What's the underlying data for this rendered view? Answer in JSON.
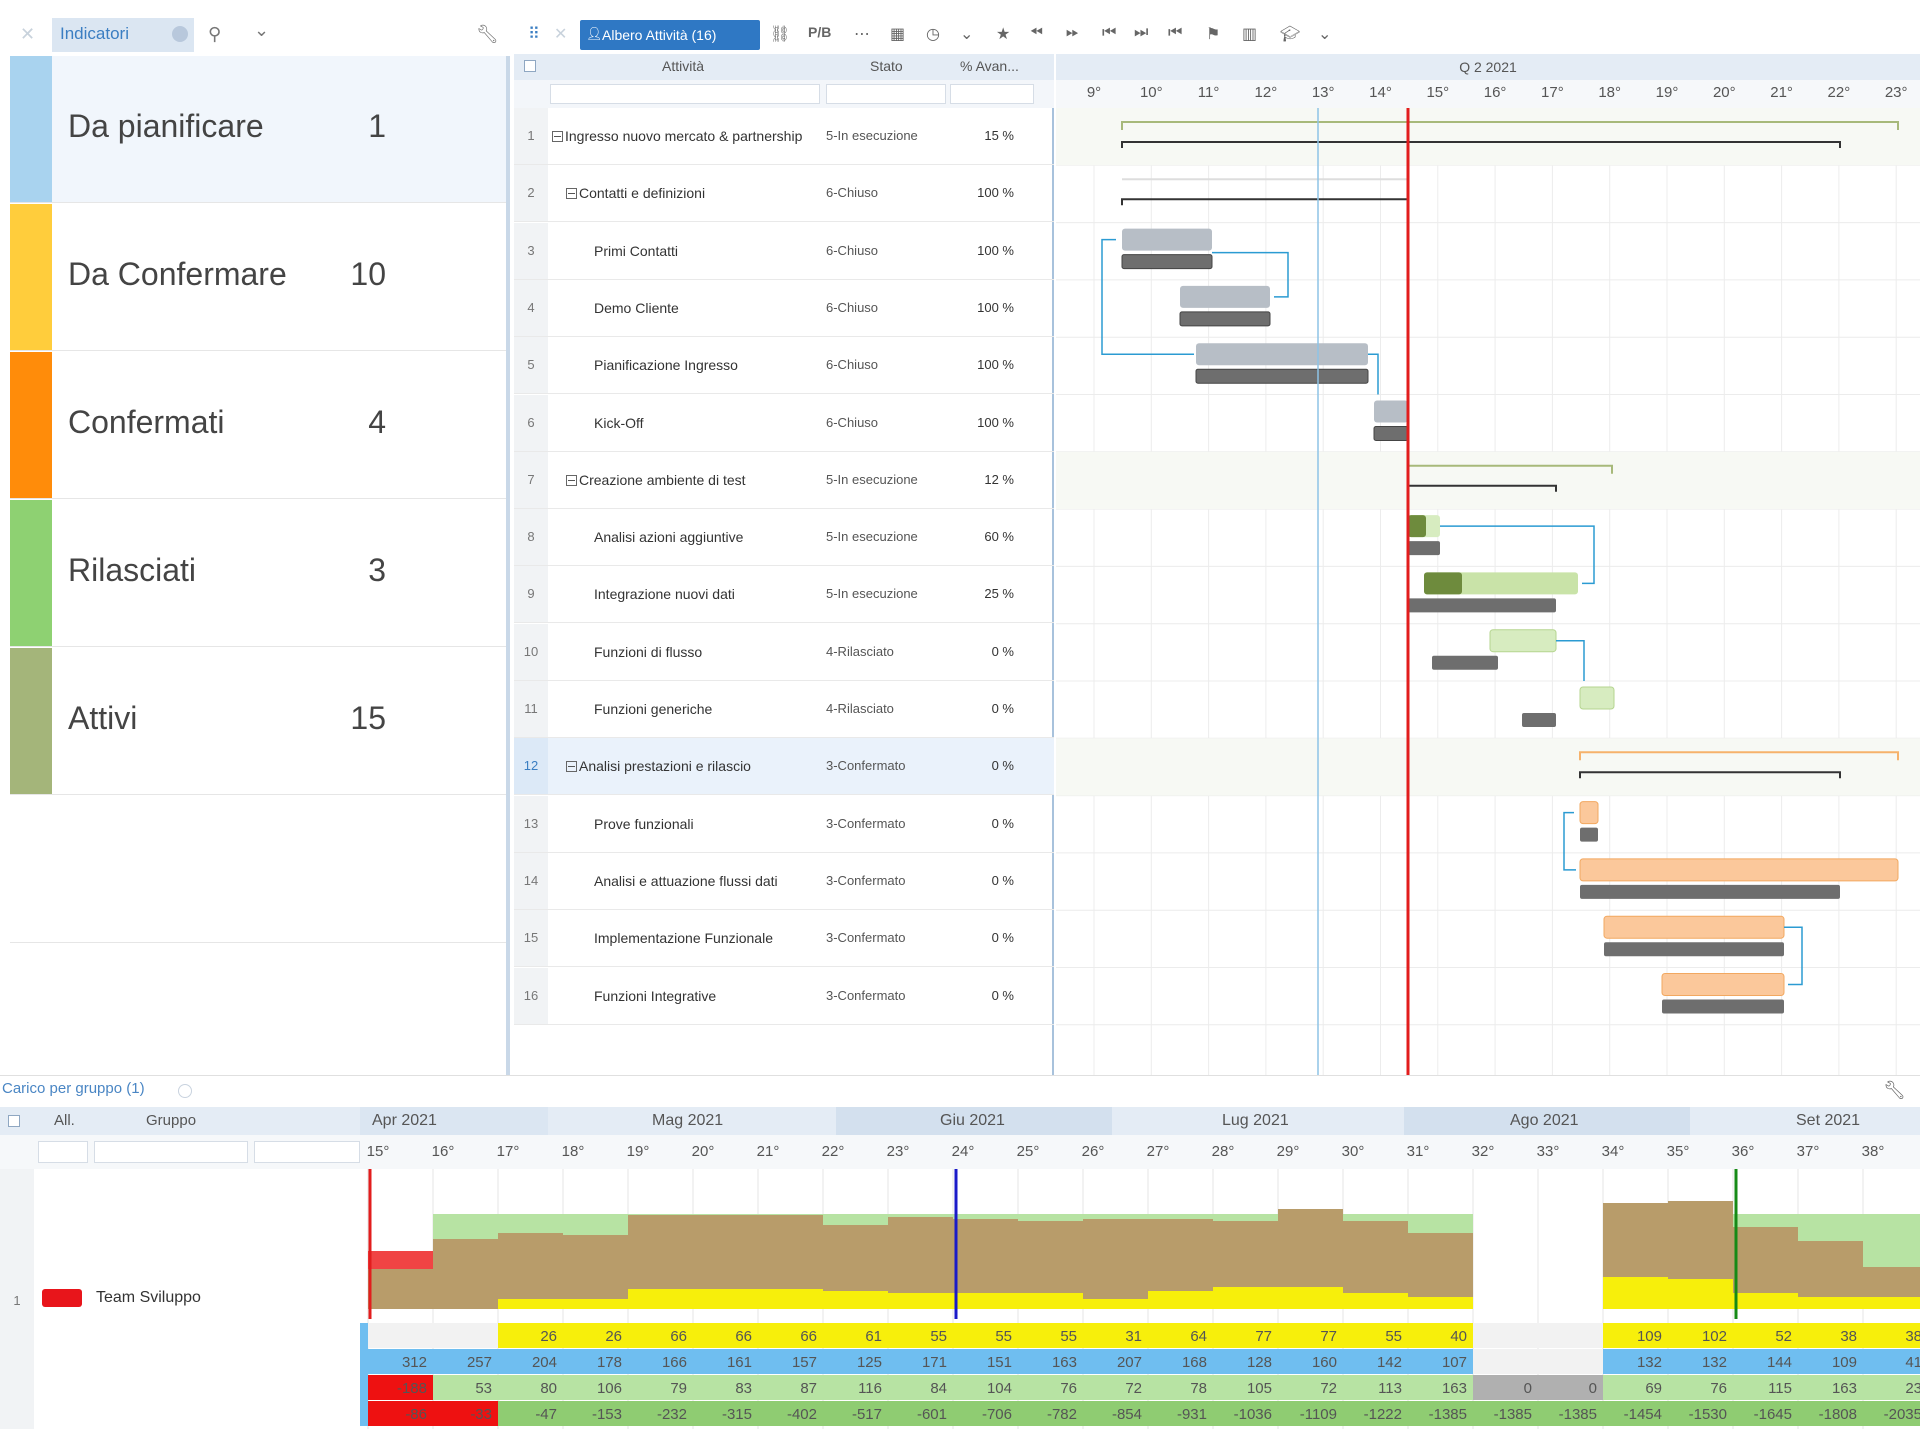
{
  "left_panel": {
    "tab_label": "Indicatori",
    "statuses": [
      {
        "label": "Da pianificare",
        "count": "1",
        "color": "#a9d3ef"
      },
      {
        "label": "Da Confermare",
        "count": "10",
        "color": "#ffcd3c"
      },
      {
        "label": "Confermati",
        "count": "4",
        "color": "#ff8c0a"
      },
      {
        "label": "Rilasciati",
        "count": "3",
        "color": "#8ed172"
      },
      {
        "label": "Attivi",
        "count": "15",
        "color": "#a4b57a"
      }
    ]
  },
  "main_toolbar": {
    "tab_label": "Albero Attività (16)",
    "pb_label": "P/B"
  },
  "grid": {
    "col_attivita": "Attività",
    "col_stato": "Stato",
    "col_avanz": "% Avan...",
    "rows": [
      {
        "num": "1",
        "name": "Ingresso nuovo mercato & partnership",
        "stato": "5-In esecuzione",
        "pct": "15 %",
        "level": 0,
        "group": true
      },
      {
        "num": "2",
        "name": "Contatti e definizioni",
        "stato": "6-Chiuso",
        "pct": "100 %",
        "level": 1,
        "group": true
      },
      {
        "num": "3",
        "name": "Primi Contatti",
        "stato": "6-Chiuso",
        "pct": "100 %",
        "level": 2,
        "group": false
      },
      {
        "num": "4",
        "name": "Demo Cliente",
        "stato": "6-Chiuso",
        "pct": "100 %",
        "level": 2,
        "group": false
      },
      {
        "num": "5",
        "name": "Pianificazione Ingresso",
        "stato": "6-Chiuso",
        "pct": "100 %",
        "level": 2,
        "group": false
      },
      {
        "num": "6",
        "name": "Kick-Off",
        "stato": "6-Chiuso",
        "pct": "100 %",
        "level": 2,
        "group": false
      },
      {
        "num": "7",
        "name": "Creazione ambiente di test",
        "stato": "5-In esecuzione",
        "pct": "12 %",
        "level": 1,
        "group": true
      },
      {
        "num": "8",
        "name": "Analisi azioni aggiuntive",
        "stato": "5-In esecuzione",
        "pct": "60 %",
        "level": 2,
        "group": false
      },
      {
        "num": "9",
        "name": "Integrazione nuovi dati",
        "stato": "5-In esecuzione",
        "pct": "25 %",
        "level": 2,
        "group": false
      },
      {
        "num": "10",
        "name": "Funzioni di flusso",
        "stato": "4-Rilasciato",
        "pct": "0 %",
        "level": 2,
        "group": false
      },
      {
        "num": "11",
        "name": "Funzioni generiche",
        "stato": "4-Rilasciato",
        "pct": "0 %",
        "level": 2,
        "group": false
      },
      {
        "num": "12",
        "name": "Analisi prestazioni e rilascio",
        "stato": "3-Confermato",
        "pct": "0 %",
        "level": 1,
        "group": true,
        "selected": true
      },
      {
        "num": "13",
        "name": "Prove funzionali",
        "stato": "3-Confermato",
        "pct": "0 %",
        "level": 2,
        "group": false
      },
      {
        "num": "14",
        "name": "Analisi e attuazione flussi dati",
        "stato": "3-Confermato",
        "pct": "0 %",
        "level": 2,
        "group": false
      },
      {
        "num": "15",
        "name": "Implementazione Funzionale",
        "stato": "3-Confermato",
        "pct": "0 %",
        "level": 2,
        "group": false
      },
      {
        "num": "16",
        "name": "Funzioni Integrative",
        "stato": "3-Confermato",
        "pct": "0 %",
        "level": 2,
        "group": false
      }
    ]
  },
  "gantt": {
    "quarter": "Q 2 2021",
    "weeks": [
      "9°",
      "10°",
      "11°",
      "12°",
      "13°",
      "14°",
      "15°",
      "16°",
      "17°",
      "18°",
      "19°",
      "20°",
      "21°",
      "22°",
      "23°"
    ]
  },
  "bottom_panel": {
    "tab_label": "Carico per gruppo (1)",
    "col_all": "All.",
    "col_gruppo": "Gruppo",
    "months": [
      "Apr 2021",
      "Mag 2021",
      "Giu 2021",
      "Lug 2021",
      "Ago 2021",
      "Set 2021"
    ],
    "weeks": [
      "15°",
      "16°",
      "17°",
      "18°",
      "19°",
      "20°",
      "21°",
      "22°",
      "23°",
      "24°",
      "25°",
      "26°",
      "27°",
      "28°",
      "29°",
      "30°",
      "31°",
      "32°",
      "33°",
      "34°",
      "35°",
      "36°",
      "37°",
      "38°"
    ],
    "row_num": "1",
    "team": "Team Sviluppo",
    "team_color": "#e8151b",
    "yellow_row": [
      "",
      "",
      "26",
      "26",
      "66",
      "66",
      "66",
      "61",
      "55",
      "55",
      "55",
      "31",
      "64",
      "77",
      "77",
      "55",
      "40",
      "",
      "",
      "109",
      "102",
      "52",
      "38",
      "38"
    ],
    "blue_row": [
      "312",
      "257",
      "204",
      "178",
      "166",
      "161",
      "157",
      "125",
      "171",
      "151",
      "163",
      "207",
      "168",
      "128",
      "160",
      "142",
      "107",
      "",
      "",
      "132",
      "132",
      "144",
      "109",
      "41"
    ],
    "green_row": [
      "-188",
      "53",
      "80",
      "106",
      "79",
      "83",
      "87",
      "116",
      "84",
      "104",
      "76",
      "72",
      "78",
      "105",
      "72",
      "113",
      "163",
      "0",
      "0",
      "69",
      "76",
      "115",
      "163",
      "23"
    ],
    "cum_row": [
      "-86",
      "-33",
      "-47",
      "-153",
      "-232",
      "-315",
      "-402",
      "-517",
      "-601",
      "-706",
      "-782",
      "-854",
      "-931",
      "-1036",
      "-1109",
      "-1222",
      "-1385",
      "-1385",
      "-1385",
      "-1454",
      "-1530",
      "-1645",
      "-1808",
      "-2035"
    ]
  }
}
